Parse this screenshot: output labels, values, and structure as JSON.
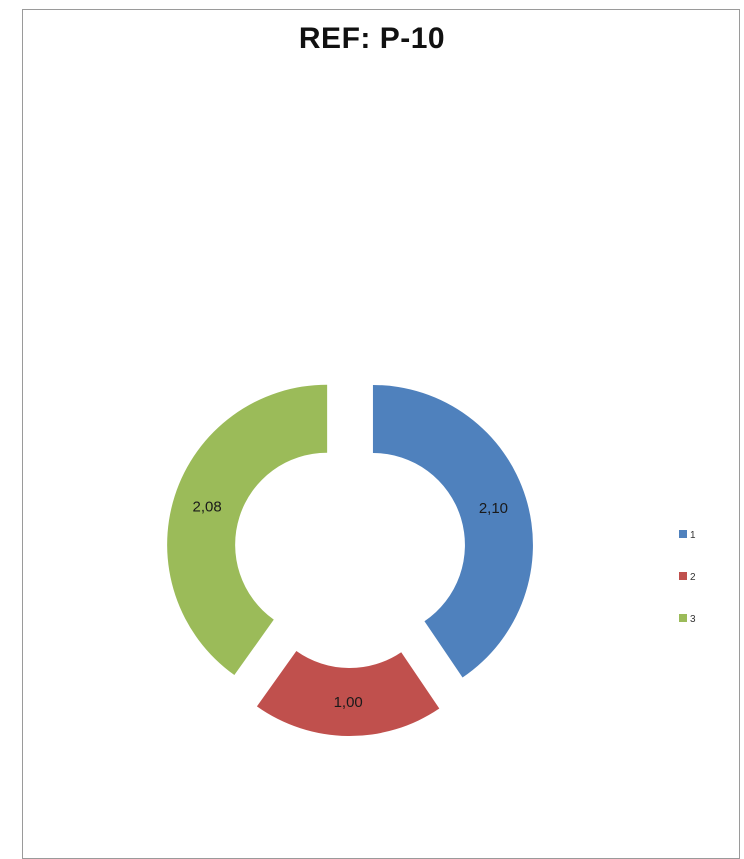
{
  "chart_data": {
    "type": "pie",
    "subtype": "doughnut-exploded",
    "title": "REF: P-10",
    "categories": [
      "1",
      "2",
      "3"
    ],
    "values": [
      2.1,
      1.0,
      2.08
    ],
    "value_labels": [
      "2,10",
      "1,00",
      "2,08"
    ],
    "colors": [
      "#4f81bd",
      "#c0504d",
      "#9bbb59"
    ],
    "legend": {
      "position": "right",
      "entries": [
        "1",
        "2",
        "3"
      ]
    }
  }
}
